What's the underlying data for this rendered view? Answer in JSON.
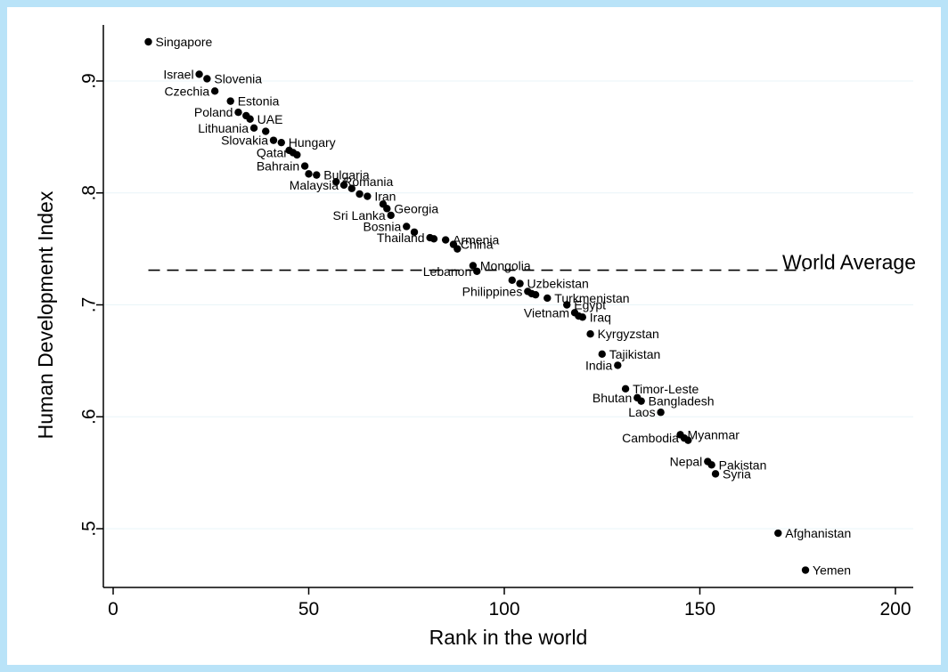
{
  "chart_data": {
    "type": "scatter",
    "xlabel": "Rank in the world",
    "ylabel": "Human Development Index",
    "xlim": [
      0,
      200
    ],
    "ylim": [
      0.5,
      0.9
    ],
    "x_ticks": [
      0,
      50,
      100,
      150,
      200
    ],
    "x_tick_labels": [
      "0",
      "50",
      "100",
      "150",
      "200"
    ],
    "y_ticks": [
      0.5,
      0.6,
      0.7,
      0.8,
      0.9
    ],
    "y_tick_labels": [
      ".5",
      ".6",
      ".7",
      ".8",
      ".9"
    ],
    "grid": "horizontal",
    "reference_line": {
      "label": "World Average",
      "y": 0.731,
      "x_start": 9,
      "x_end": 177,
      "style": "dashed"
    },
    "points": [
      {
        "x": 9,
        "y": 0.935,
        "label": "Singapore",
        "anchor": "start"
      },
      {
        "x": 22,
        "y": 0.906,
        "label": "Israel",
        "anchor": "end"
      },
      {
        "x": 24,
        "y": 0.902,
        "label": "Slovenia",
        "anchor": "start"
      },
      {
        "x": 26,
        "y": 0.891,
        "label": "Czechia",
        "anchor": "end"
      },
      {
        "x": 30,
        "y": 0.882,
        "label": "Estonia",
        "anchor": "start"
      },
      {
        "x": 32,
        "y": 0.872,
        "label": "Poland",
        "anchor": "end"
      },
      {
        "x": 34,
        "y": 0.869,
        "label": "",
        "anchor": "start"
      },
      {
        "x": 35,
        "y": 0.866,
        "label": "UAE",
        "anchor": "start"
      },
      {
        "x": 36,
        "y": 0.858,
        "label": "Lithuania",
        "anchor": "end"
      },
      {
        "x": 39,
        "y": 0.855,
        "label": "",
        "anchor": "start"
      },
      {
        "x": 41,
        "y": 0.847,
        "label": "Slovakia",
        "anchor": "end"
      },
      {
        "x": 43,
        "y": 0.845,
        "label": "Hungary",
        "anchor": "start"
      },
      {
        "x": 45,
        "y": 0.838,
        "label": "",
        "anchor": "start"
      },
      {
        "x": 46,
        "y": 0.836,
        "label": "Qatar",
        "anchor": "end"
      },
      {
        "x": 47,
        "y": 0.834,
        "label": "",
        "anchor": "start"
      },
      {
        "x": 49,
        "y": 0.824,
        "label": "Bahrain",
        "anchor": "end"
      },
      {
        "x": 50,
        "y": 0.817,
        "label": "",
        "anchor": "start"
      },
      {
        "x": 52,
        "y": 0.816,
        "label": "Bulgaria",
        "anchor": "start"
      },
      {
        "x": 57,
        "y": 0.81,
        "label": "Romania",
        "anchor": "start"
      },
      {
        "x": 59,
        "y": 0.807,
        "label": "Malaysia",
        "anchor": "end"
      },
      {
        "x": 61,
        "y": 0.804,
        "label": "",
        "anchor": "start"
      },
      {
        "x": 63,
        "y": 0.799,
        "label": "",
        "anchor": "start"
      },
      {
        "x": 65,
        "y": 0.797,
        "label": "Iran",
        "anchor": "start"
      },
      {
        "x": 69,
        "y": 0.79,
        "label": "",
        "anchor": "start"
      },
      {
        "x": 70,
        "y": 0.786,
        "label": "Georgia",
        "anchor": "start"
      },
      {
        "x": 71,
        "y": 0.78,
        "label": "Sri Lanka",
        "anchor": "end"
      },
      {
        "x": 75,
        "y": 0.77,
        "label": "Bosnia",
        "anchor": "end"
      },
      {
        "x": 77,
        "y": 0.765,
        "label": "",
        "anchor": "start"
      },
      {
        "x": 81,
        "y": 0.76,
        "label": "Thailand",
        "anchor": "end"
      },
      {
        "x": 82,
        "y": 0.759,
        "label": "",
        "anchor": "start"
      },
      {
        "x": 85,
        "y": 0.758,
        "label": "Armenia",
        "anchor": "start"
      },
      {
        "x": 87,
        "y": 0.754,
        "label": "China",
        "anchor": "start"
      },
      {
        "x": 88,
        "y": 0.75,
        "label": "",
        "anchor": "start"
      },
      {
        "x": 92,
        "y": 0.735,
        "label": "Mongolia",
        "anchor": "start"
      },
      {
        "x": 93,
        "y": 0.73,
        "label": "Lebanon",
        "anchor": "end"
      },
      {
        "x": 102,
        "y": 0.722,
        "label": "",
        "anchor": "start"
      },
      {
        "x": 104,
        "y": 0.719,
        "label": "Uzbekistan",
        "anchor": "start"
      },
      {
        "x": 106,
        "y": 0.712,
        "label": "Philippines",
        "anchor": "end"
      },
      {
        "x": 107,
        "y": 0.71,
        "label": "",
        "anchor": "start"
      },
      {
        "x": 108,
        "y": 0.709,
        "label": "",
        "anchor": "start"
      },
      {
        "x": 111,
        "y": 0.706,
        "label": "Turkmenistan",
        "anchor": "start"
      },
      {
        "x": 116,
        "y": 0.7,
        "label": "Egypt",
        "anchor": "start"
      },
      {
        "x": 118,
        "y": 0.693,
        "label": "Vietnam",
        "anchor": "end"
      },
      {
        "x": 119,
        "y": 0.69,
        "label": "",
        "anchor": "start"
      },
      {
        "x": 120,
        "y": 0.689,
        "label": "Iraq",
        "anchor": "start"
      },
      {
        "x": 122,
        "y": 0.674,
        "label": "Kyrgyzstan",
        "anchor": "start"
      },
      {
        "x": 125,
        "y": 0.656,
        "label": "Tajikistan",
        "anchor": "start"
      },
      {
        "x": 129,
        "y": 0.646,
        "label": "India",
        "anchor": "end"
      },
      {
        "x": 131,
        "y": 0.625,
        "label": "Timor-Leste",
        "anchor": "start"
      },
      {
        "x": 134,
        "y": 0.617,
        "label": "Bhutan",
        "anchor": "end"
      },
      {
        "x": 135,
        "y": 0.614,
        "label": "Bangladesh",
        "anchor": "start"
      },
      {
        "x": 140,
        "y": 0.604,
        "label": "Laos",
        "anchor": "end"
      },
      {
        "x": 145,
        "y": 0.584,
        "label": "Myanmar",
        "anchor": "start"
      },
      {
        "x": 146,
        "y": 0.581,
        "label": "Cambodia",
        "anchor": "end"
      },
      {
        "x": 147,
        "y": 0.579,
        "label": "",
        "anchor": "start"
      },
      {
        "x": 152,
        "y": 0.56,
        "label": "Nepal",
        "anchor": "end"
      },
      {
        "x": 153,
        "y": 0.557,
        "label": "Pakistan",
        "anchor": "start"
      },
      {
        "x": 154,
        "y": 0.549,
        "label": "Syria",
        "anchor": "start"
      },
      {
        "x": 170,
        "y": 0.496,
        "label": "Afghanistan",
        "anchor": "start"
      },
      {
        "x": 177,
        "y": 0.463,
        "label": "Yemen",
        "anchor": "start"
      }
    ]
  }
}
